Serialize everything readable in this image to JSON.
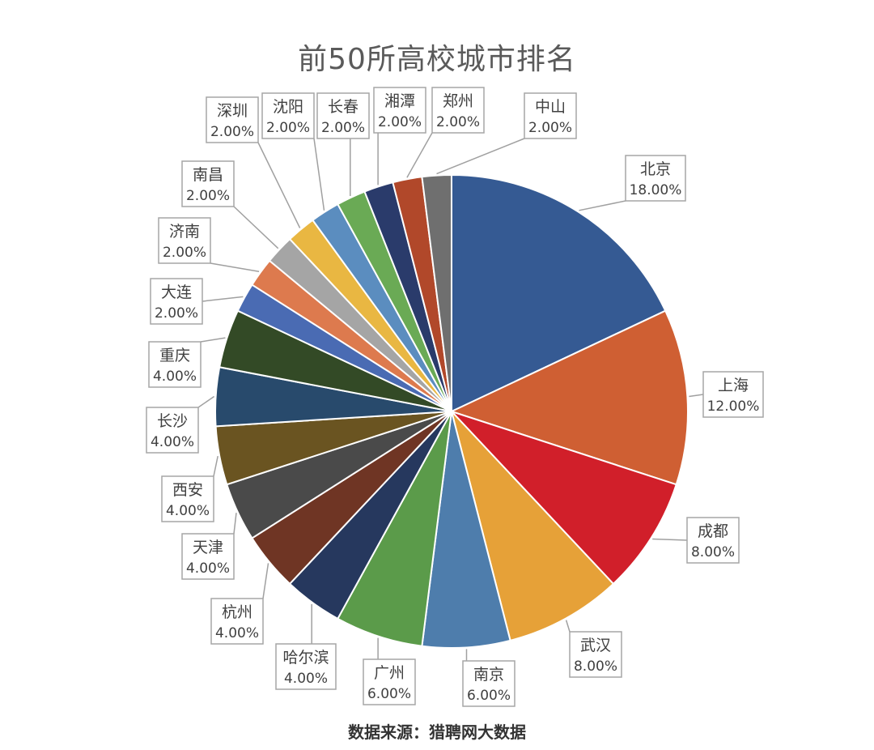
{
  "chart_data": {
    "type": "pie",
    "title": "前50所高校城市排名",
    "categories": [
      "北京",
      "上海",
      "成都",
      "武汉",
      "南京",
      "广州",
      "哈尔滨",
      "杭州",
      "天津",
      "西安",
      "长沙",
      "重庆",
      "大连",
      "济南",
      "南昌",
      "深圳",
      "沈阳",
      "长春",
      "湘潭",
      "郑州",
      "中山"
    ],
    "values": [
      18,
      12,
      8,
      8,
      6,
      6,
      4,
      4,
      4,
      4,
      4,
      4,
      2,
      2,
      2,
      2,
      2,
      2,
      2,
      2,
      2
    ],
    "labels": [
      "18.00%",
      "12.00%",
      "8.00%",
      "8.00%",
      "6.00%",
      "6.00%",
      "4.00%",
      "4.00%",
      "4.00%",
      "4.00%",
      "4.00%",
      "4.00%",
      "2.00%",
      "2.00%",
      "2.00%",
      "2.00%",
      "2.00%",
      "2.00%",
      "2.00%",
      "2.00%",
      "2.00%"
    ],
    "colors": [
      "#355a93",
      "#cf5f33",
      "#d11f2a",
      "#e6a138",
      "#4e7dac",
      "#5b9b4a",
      "#26385e",
      "#6f3524",
      "#4a4a4a",
      "#6a5421",
      "#284a6c",
      "#334a26",
      "#4a6bb3",
      "#dd7a4e",
      "#a5a5a5",
      "#e9b742",
      "#5b8dbf",
      "#6aaa55",
      "#2a3b6b",
      "#b1482a",
      "#6f6f6f"
    ],
    "legend": "none"
  },
  "source": "数据来源：猎聘网大数据"
}
